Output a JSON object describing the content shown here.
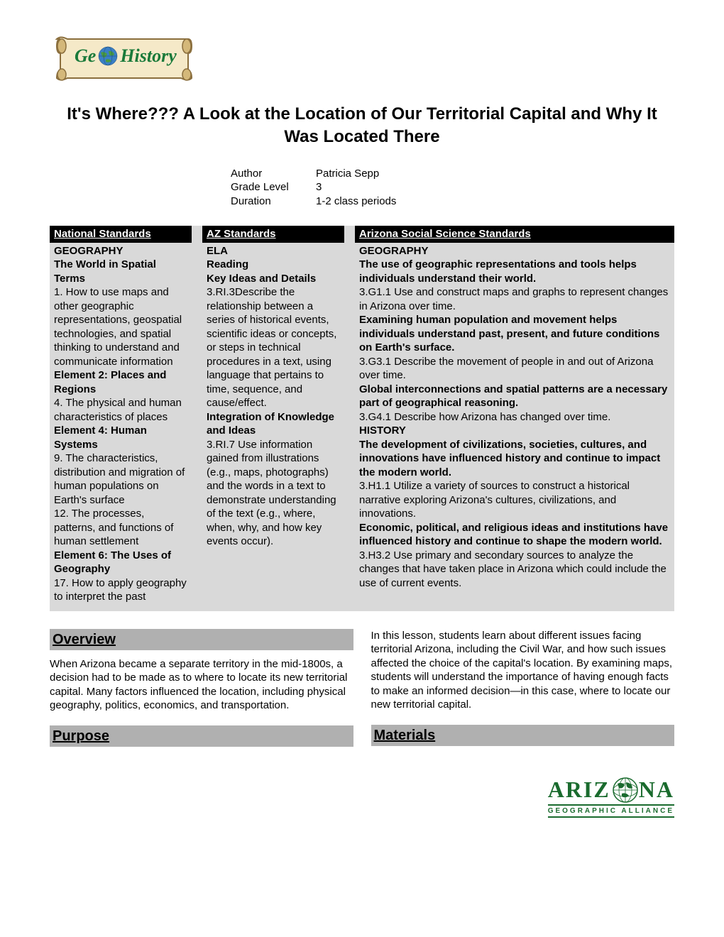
{
  "logo": {
    "prefix": "Ge",
    "suffix": "History"
  },
  "title": "It's Where???  A Look at the Location of Our Territorial Capital and Why It Was Located There",
  "meta": {
    "author_label": "Author",
    "author": "Patricia Sepp",
    "grade_label": "Grade Level",
    "grade": "3",
    "duration_label": "Duration",
    "duration": "1-2 class periods"
  },
  "standards": {
    "col1": {
      "header": "National Standards",
      "body": [
        {
          "t": "GEOGRAPHY",
          "b": true
        },
        {
          "t": "The World in Spatial Terms",
          "b": true
        },
        {
          "t": "1. How to use maps and other geographic representations, geospatial technologies, and spatial thinking to understand and communicate information"
        },
        {
          "t": "Element 2: Places and Regions",
          "b": true
        },
        {
          "t": "4. The physical and human characteristics of places"
        },
        {
          "t": "Element 4: Human Systems",
          "b": true
        },
        {
          "t": "9. The characteristics, distribution and migration of human populations on Earth's surface"
        },
        {
          "t": "12. The processes, patterns, and functions of human settlement"
        },
        {
          "t": "Element 6: The Uses of Geography",
          "b": true
        },
        {
          "t": "17. How to apply geography to interpret the past"
        }
      ]
    },
    "col2": {
      "header": "AZ Standards",
      "body": [
        {
          "t": "ELA",
          "b": true
        },
        {
          "t": "Reading",
          "b": true
        },
        {
          "t": "Key Ideas and Details",
          "b": true
        },
        {
          "t": "3.RI.3Describe the relationship between a series of historical events, scientific ideas or concepts, or steps in technical procedures in a text, using language that pertains to time, sequence, and cause/effect."
        },
        {
          "t": "Integration of Knowledge and Ideas",
          "b": true
        },
        {
          "t": "3.RI.7 Use information gained from illustrations (e.g., maps, photographs) and the words in a text to demonstrate understanding of the text (e.g., where, when, why, and how key events occur)."
        }
      ]
    },
    "col3": {
      "header": "Arizona Social Science Standards",
      "body": [
        {
          "t": "GEOGRAPHY",
          "b": true
        },
        {
          "t": "The use of geographic representations and tools helps individuals understand their world.",
          "b": true
        },
        {
          "t": "3.G1.1  Use and construct maps and graphs to represent changes in Arizona over time."
        },
        {
          "t": "Examining human population and movement helps individuals understand past, present, and future conditions on Earth's surface.",
          "b": true
        },
        {
          "t": "3.G3.1  Describe the movement of people in and out of Arizona over time."
        },
        {
          "t": "Global interconnections and spatial patterns are a necessary part of geographical reasoning.",
          "b": true
        },
        {
          "t": "3.G4.1  Describe how Arizona has changed over time."
        },
        {
          "t": "HISTORY",
          "b": true
        },
        {
          "t": "The development of civilizations, societies, cultures, and innovations have influenced history and continue to impact the modern world.",
          "b": true
        },
        {
          "t": "3.H1.1  Utilize a variety of sources to construct a historical narrative exploring Arizona's cultures, civilizations, and innovations."
        },
        {
          "t": "Economic, political, and religious ideas and institutions have influenced history and continue to shape the modern world.",
          "b": true
        },
        {
          "t": "3.H3.2  Use primary and secondary sources to analyze the changes that have taken place in Arizona which could include the use of current events."
        }
      ]
    }
  },
  "sections": {
    "overview": {
      "header": "Overview",
      "text": "When Arizona became a separate territory in the mid-1800s, a decision had to be made as to where to locate its new territorial capital.  Many factors influenced the location, including physical geography, politics, economics, and transportation."
    },
    "purpose": {
      "header": "Purpose"
    },
    "lesson_text": "In this lesson, students learn about different issues facing territorial Arizona, including the Civil War, and how such issues affected the choice of the capital's location. By examining maps, students will understand the importance of having enough facts to make an informed decision—in this case, where to locate our new territorial capital.",
    "materials": {
      "header": "Materials"
    }
  },
  "footer": {
    "main1": "ARIZ",
    "main2": "NA",
    "sub": "GEOGRAPHIC ALLIANCE"
  }
}
